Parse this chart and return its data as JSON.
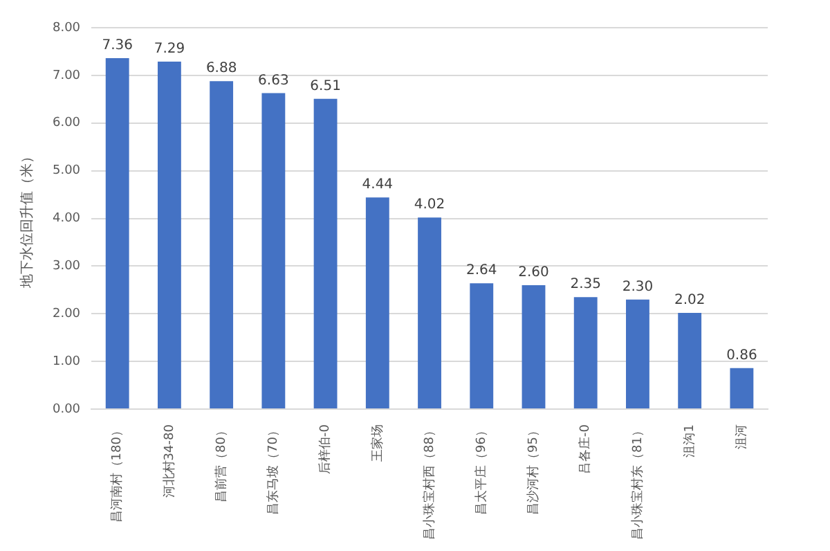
{
  "chart_data": {
    "type": "bar",
    "ylabel": "地下水位回升值（米）",
    "categories": [
      "昌河南村（180）",
      "河北村34-80",
      "昌前营（80）",
      "昌东马坡（70）",
      "后梓伯-0",
      "王家场",
      "昌小珠宝村西（88）",
      "昌太平庄（96）",
      "昌沙河村（95）",
      "吕各庄-0",
      "昌小珠宝村东（81）",
      "沮沟1",
      "沮河"
    ],
    "values": [
      7.36,
      7.29,
      6.88,
      6.63,
      6.51,
      4.44,
      4.02,
      2.64,
      2.6,
      2.35,
      2.3,
      2.02,
      0.86
    ],
    "value_labels": [
      "7.36",
      "7.29",
      "6.88",
      "6.63",
      "6.51",
      "4.44",
      "4.02",
      "2.64",
      "2.60",
      "2.35",
      "2.30",
      "2.02",
      "0.86"
    ],
    "color": "#4472c4",
    "ylim": [
      0,
      8
    ],
    "yticks": [
      {
        "value": 0,
        "label": "0.00"
      },
      {
        "value": 1,
        "label": "1.00"
      },
      {
        "value": 2,
        "label": "2.00"
      },
      {
        "value": 3,
        "label": "3.00"
      },
      {
        "value": 4,
        "label": "4.00"
      },
      {
        "value": 5,
        "label": "5.00"
      },
      {
        "value": 6,
        "label": "6.00"
      },
      {
        "value": 7,
        "label": "7.00"
      },
      {
        "value": 8,
        "label": "8.00"
      }
    ],
    "grid": "y",
    "legend": false
  }
}
